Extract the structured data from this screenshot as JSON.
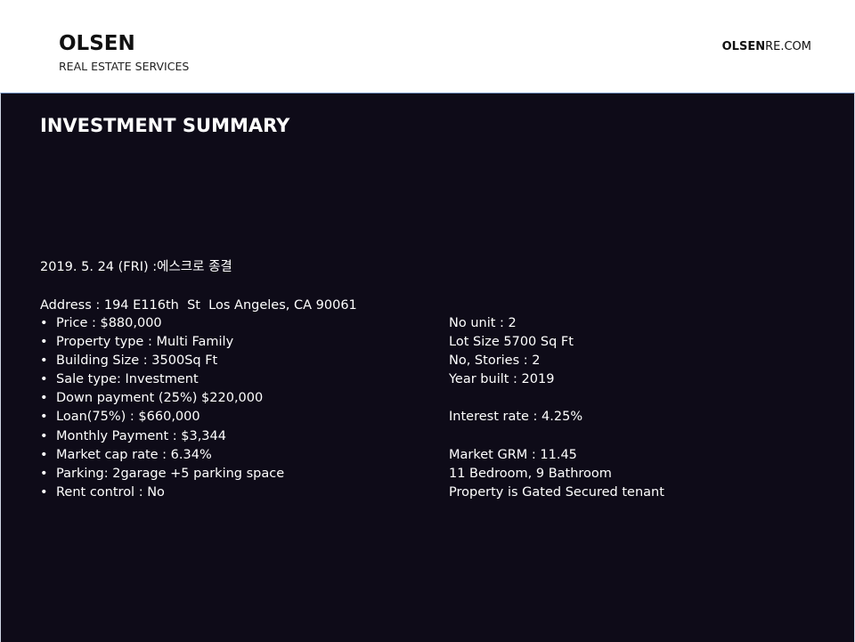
{
  "header": {
    "brand": "OLSEN",
    "tagline": "REAL ESTATE SERVICES",
    "site_bold": "OLSEN",
    "site_rest": "RE.COM"
  },
  "main": {
    "title": "INVESTMENT SUMMARY",
    "date_line": "2019. 5. 24 (FRI) :에스크로 종결",
    "address": "Address : 194 E116th  St  Los Angeles, CA 90061",
    "left_items": [
      "Price : $880,000",
      "Property type : Multi Family",
      "Building Size : 3500Sq Ft",
      "Sale type: Investment",
      "Down payment (25%) $220,000",
      "Loan(75%) : $660,000",
      "Monthly Payment : $3,344",
      "Market cap rate : 6.34%",
      "Parking: 2garage +5 parking space",
      "Rent control : No"
    ],
    "right_items": [
      "No unit : 2",
      "Lot Size 5700 Sq Ft",
      "No, Stories : 2",
      "Year built : 2019",
      "",
      "Interest rate : 4.25%",
      "",
      "Market GRM : 11.45",
      "11 Bedroom, 9 Bathroom",
      "Property is Gated Secured tenant"
    ]
  }
}
